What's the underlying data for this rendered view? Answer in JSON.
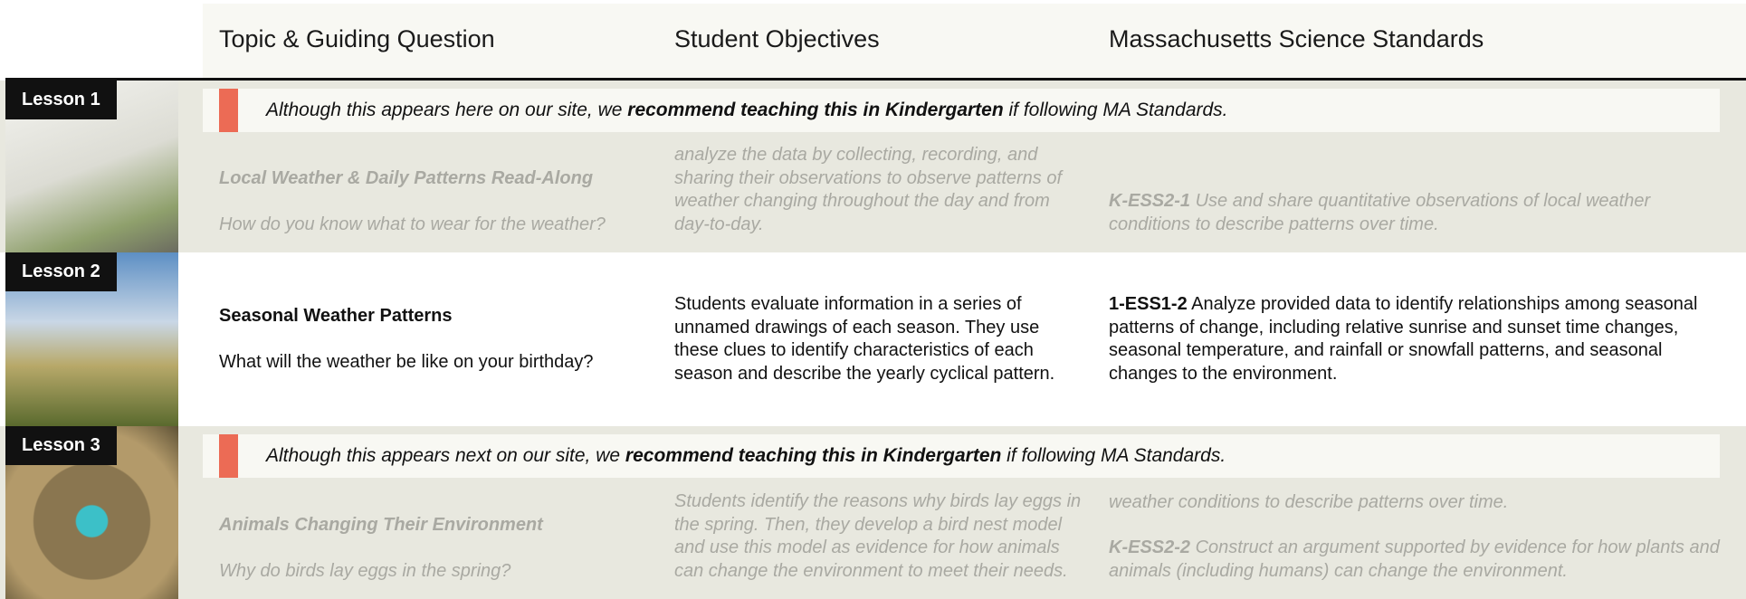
{
  "header": {
    "columns": [
      "Topic & Guiding Question",
      "Student Objectives",
      "Massachusetts Science Standards"
    ]
  },
  "lessons": [
    {
      "label": "Lesson 1",
      "note": {
        "before": "Although this appears here on our site, we",
        "bold": "recommend teaching this in Kindergarten",
        "after": "if following MA Standards."
      },
      "title": "Local Weather & Daily Patterns Read-Along",
      "question": "How do you know what to wear for the weather?",
      "objectives": "analyze the data by collecting, recording, and sharing their observations to observe patterns of weather changing throughout the day and from day-to-day.",
      "standards": [
        {
          "code": "K-ESS2-1",
          "text": "Use and share quantitative observations of local weather conditions to describe patterns over time."
        }
      ]
    },
    {
      "label": "Lesson 2",
      "title": "Seasonal Weather Patterns",
      "question": "What will the weather be like on your birthday?",
      "objectives": "Students evaluate information in a series of unnamed drawings of each season. They use these clues to identify characteristics of each season and describe the yearly cyclical pattern.",
      "standards": [
        {
          "code": "1-ESS1-2",
          "text": "Analyze provided data to identify relationships among seasonal patterns of change, including relative sunrise and sunset time changes, seasonal temperature, and rainfall or snowfall patterns, and seasonal changes to the environment."
        }
      ]
    },
    {
      "label": "Lesson 3",
      "note": {
        "before": "Although this appears next on our site, we",
        "bold": "recommend teaching this in Kindergarten",
        "after": "if following MA Standards."
      },
      "title": "Animals Changing Their Environment",
      "question": "Why do birds lay eggs in the spring?",
      "objectives": "Students identify the reasons why birds lay eggs in the spring. Then, they develop a bird nest model and use this model as evidence for how animals can change the environment to meet their needs.",
      "standards": [
        {
          "text": "weather conditions to describe patterns over time."
        },
        {
          "code": "K-ESS2-2",
          "text": "Construct an argument supported by evidence for how plants and animals (including humans) can change the environment."
        }
      ]
    }
  ]
}
